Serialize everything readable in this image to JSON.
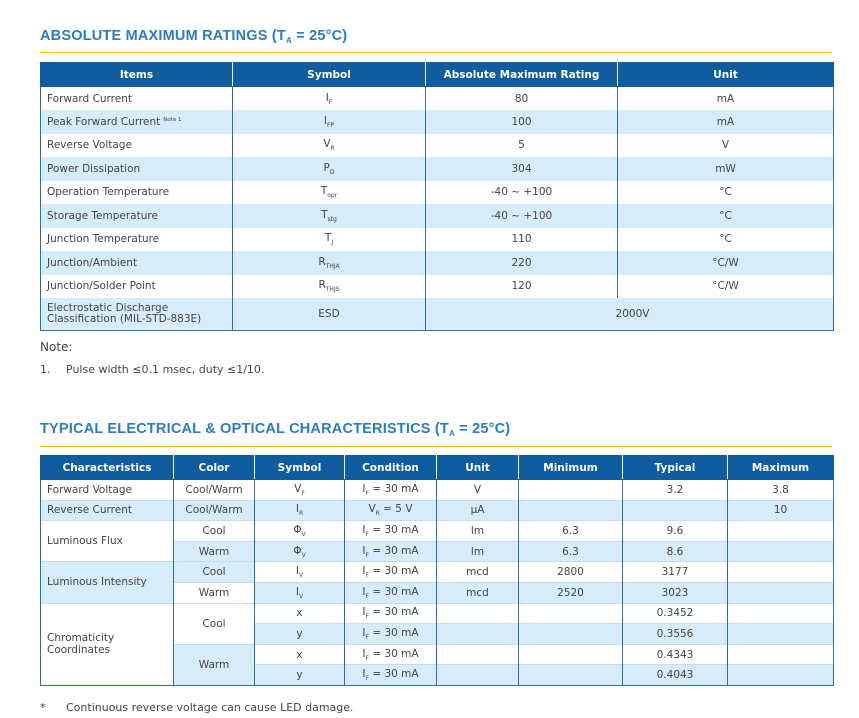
{
  "section1": {
    "title": {
      "before": "ABSOLUTE MAXIMUM RATINGS (T",
      "sub": "A",
      "after": " = 25°C)"
    },
    "table": {
      "headers": [
        "Items",
        "Symbol",
        "Absolute Maximum Rating",
        "Unit"
      ],
      "rows": [
        {
          "item": "Forward Current",
          "symbol": {
            "main": "I",
            "sub": "F"
          },
          "rating": 80,
          "unit": "mA"
        },
        {
          "item": "Peak Forward Current",
          "note": "Note 1",
          "symbol": {
            "main": "I",
            "sub": "FP"
          },
          "rating": 100,
          "unit": "mA"
        },
        {
          "item": "Reverse Voltage",
          "symbol": {
            "main": "V",
            "sub": "R"
          },
          "rating": 5,
          "unit": "V"
        },
        {
          "item": "Power Dissipation",
          "symbol": {
            "main": "P",
            "sub": "D"
          },
          "rating": 304,
          "unit": "mW"
        },
        {
          "item": "Operation Temperature",
          "symbol": {
            "main": "T",
            "sub": "opr"
          },
          "rating": "-40 ~ +100",
          "unit": "°C"
        },
        {
          "item": "Storage Temperature",
          "symbol": {
            "main": "T",
            "sub": "stg"
          },
          "rating": "-40 ~ +100",
          "unit": "°C"
        },
        {
          "item": "Junction Temperature",
          "symbol": {
            "main": "T",
            "sub": "J"
          },
          "rating": 110,
          "unit": "°C"
        },
        {
          "item": "Junction/Ambient",
          "symbol": {
            "main": "R",
            "sub": "THJA"
          },
          "rating": 220,
          "unit": "°C/W"
        },
        {
          "item": "Junction/Solder Point",
          "symbol": {
            "main": "R",
            "sub": "THJS"
          },
          "rating": 120,
          "unit": "°C/W"
        },
        {
          "item": "Electrostatic Discharge Classification (MIL-STD-883E)",
          "symbol": {
            "main": "ESD"
          },
          "rating": "2000V"
        }
      ]
    },
    "note_heading": "Note:",
    "notes": [
      {
        "marker": "1.",
        "text": "Pulse width ≤0.1 msec, duty ≤1/10."
      }
    ]
  },
  "section2": {
    "title": {
      "before": "TYPICAL ELECTRICAL & OPTICAL CHARACTERISTICS (T",
      "sub": "A",
      "after": " = 25°C)"
    },
    "table": {
      "headers": [
        "Characteristics",
        "Color",
        "Symbol",
        "Condition",
        "Unit",
        "Minimum",
        "Typical",
        "Maximum"
      ],
      "groups": [
        {
          "name": "Forward Voltage",
          "subgroups": [
            {
              "color": "Cool/Warm",
              "rows": [
                {
                  "symbol": {
                    "main": "V",
                    "sub": "F"
                  },
                  "condition": {
                    "main": "I",
                    "sub": "F",
                    "after": " = 30 mA"
                  },
                  "unit": "V",
                  "typical": 3.2,
                  "maximum": 3.8
                }
              ]
            }
          ]
        },
        {
          "name": "Reverse Current",
          "subgroups": [
            {
              "color": "Cool/Warm",
              "rows": [
                {
                  "symbol": {
                    "main": "I",
                    "sub": "R"
                  },
                  "condition": {
                    "main": "V",
                    "sub": "R",
                    "after": " = 5 V"
                  },
                  "unit": "μA",
                  "maximum": 10
                }
              ]
            }
          ]
        },
        {
          "name": "Luminous Flux",
          "subgroups": [
            {
              "color": "Cool",
              "rows": [
                {
                  "symbol": {
                    "main": "Φ",
                    "sub": "V"
                  },
                  "condition": {
                    "main": "I",
                    "sub": "F",
                    "after": " = 30 mA"
                  },
                  "unit": "lm",
                  "minimum": 6.3,
                  "typical": 9.6
                }
              ]
            },
            {
              "color": "Warm",
              "rows": [
                {
                  "symbol": {
                    "main": "Φ",
                    "sub": "V"
                  },
                  "condition": {
                    "main": "I",
                    "sub": "F",
                    "after": " = 30 mA"
                  },
                  "unit": "lm",
                  "minimum": 6.3,
                  "typical": 8.6
                }
              ]
            }
          ]
        },
        {
          "name": "Luminous Intensity",
          "subgroups": [
            {
              "color": "Cool",
              "rows": [
                {
                  "symbol": {
                    "main": "I",
                    "sub": "V"
                  },
                  "condition": {
                    "main": "I",
                    "sub": "F",
                    "after": " = 30 mA"
                  },
                  "unit": "mcd",
                  "minimum": 2800,
                  "typical": 3177
                }
              ]
            },
            {
              "color": "Warm",
              "rows": [
                {
                  "symbol": {
                    "main": "I",
                    "sub": "V"
                  },
                  "condition": {
                    "main": "I",
                    "sub": "F",
                    "after": " = 30 mA"
                  },
                  "unit": "mcd",
                  "minimum": 2520,
                  "typical": 3023
                }
              ]
            }
          ]
        },
        {
          "name": "Chromaticity Coordinates",
          "subgroups": [
            {
              "color": "Cool",
              "rows": [
                {
                  "symbol": {
                    "main": "x"
                  },
                  "condition": {
                    "main": "I",
                    "sub": "F",
                    "after": " = 30 mA"
                  },
                  "typical": 0.3452
                },
                {
                  "symbol": {
                    "main": "y"
                  },
                  "condition": {
                    "main": "I",
                    "sub": "F",
                    "after": " = 30 mA"
                  },
                  "typical": 0.3556
                }
              ]
            },
            {
              "color": "Warm",
              "rows": [
                {
                  "symbol": {
                    "main": "x"
                  },
                  "condition": {
                    "main": "I",
                    "sub": "F",
                    "after": " = 30 mA"
                  },
                  "typical": 0.4343
                },
                {
                  "symbol": {
                    "main": "y"
                  },
                  "condition": {
                    "main": "I",
                    "sub": "F",
                    "after": " = 30 mA"
                  },
                  "typical": 0.4043
                }
              ]
            }
          ]
        }
      ]
    },
    "footnote": {
      "marker": "*",
      "text": "Continuous reverse voltage can cause LED damage."
    }
  }
}
